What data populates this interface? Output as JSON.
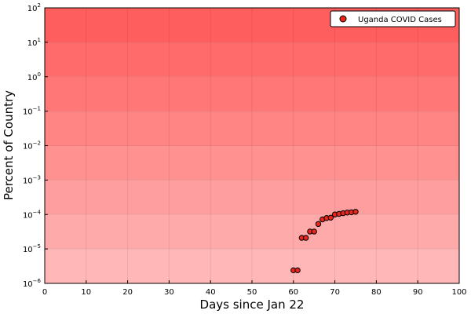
{
  "chart_data": {
    "type": "scatter",
    "title": "",
    "xlabel": "Days since Jan 22",
    "ylabel": "Percent of Country",
    "xlim": [
      0,
      100
    ],
    "ylim_log10": [
      -6,
      2
    ],
    "yscale": "log10",
    "x_ticks": [
      0,
      10,
      20,
      30,
      40,
      50,
      60,
      70,
      80,
      90,
      100
    ],
    "y_ticks": [
      {
        "base": "10",
        "exp": "−6"
      },
      {
        "base": "10",
        "exp": "−5"
      },
      {
        "base": "10",
        "exp": "−4"
      },
      {
        "base": "10",
        "exp": "−3"
      },
      {
        "base": "10",
        "exp": "−2"
      },
      {
        "base": "10",
        "exp": "−1"
      },
      {
        "base": "10",
        "exp": "0"
      },
      {
        "base": "10",
        "exp": "1"
      },
      {
        "base": "10",
        "exp": "2"
      }
    ],
    "grid": true,
    "legend_position": "top-right",
    "background_bands": "red shading, darker toward higher percentages",
    "series": [
      {
        "name": "Uganda COVID Cases",
        "color": "#e8261b",
        "x": [
          60,
          61,
          62,
          63,
          64,
          65,
          66,
          67,
          68,
          69,
          70,
          71,
          72,
          73,
          74,
          75
        ],
        "y": [
          2.4e-06,
          2.4e-06,
          2.1e-05,
          2.1e-05,
          3.2e-05,
          3.2e-05,
          5.3e-05,
          7.2e-05,
          7.9e-05,
          8.1e-05,
          0.0001,
          0.000104,
          0.000109,
          0.000114,
          0.000116,
          0.00012
        ]
      }
    ]
  }
}
